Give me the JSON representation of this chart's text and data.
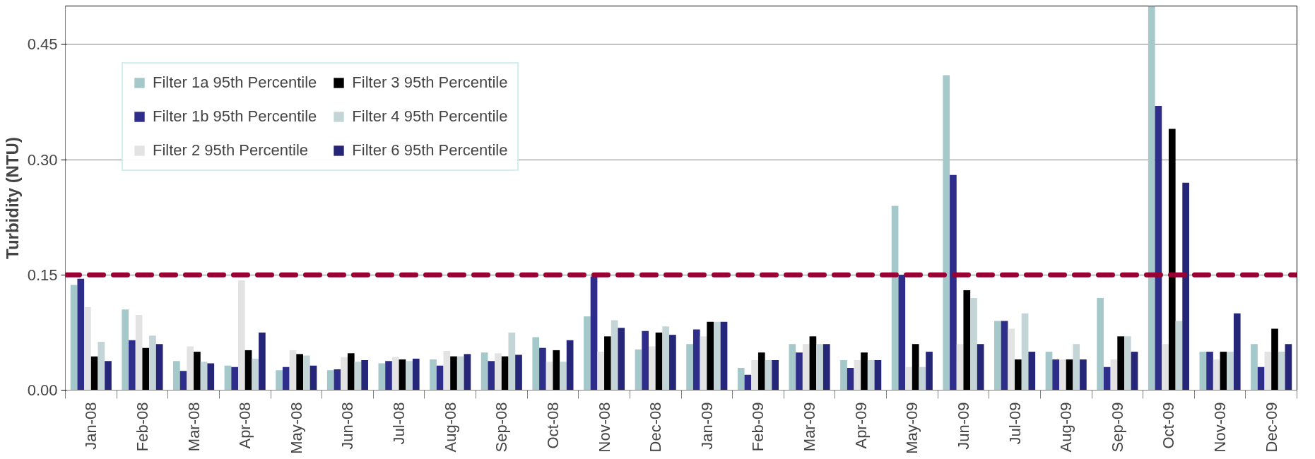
{
  "chart_data": {
    "type": "bar",
    "ylabel": "Turbidity (NTU)",
    "categories": [
      "Jan-08",
      "Feb-08",
      "Mar-08",
      "Apr-08",
      "May-08",
      "Jun-08",
      "Jul-08",
      "Aug-08",
      "Sep-08",
      "Oct-08",
      "Nov-08",
      "Dec-08",
      "Jan-09",
      "Feb-09",
      "Mar-09",
      "Apr-09",
      "May-09",
      "Jun-09",
      "Jul-09",
      "Aug-09",
      "Sep-09",
      "Oct-09",
      "Nov-09",
      "Dec-09"
    ],
    "series": [
      {
        "name": "Filter 1a 95th Percentile",
        "color": "#a5c8ca",
        "values": [
          0.137,
          0.105,
          0.038,
          0.032,
          0.026,
          0.026,
          0.035,
          0.04,
          0.049,
          0.069,
          0.096,
          0.053,
          0.06,
          0.029,
          0.06,
          0.039,
          0.24,
          0.41,
          0.09,
          0.05,
          0.12,
          0.5,
          0.05,
          0.06
        ]
      },
      {
        "name": "Filter 1b 95th Percentile",
        "color": "#2e2e8a",
        "values": [
          0.145,
          0.065,
          0.025,
          0.03,
          0.03,
          0.027,
          0.038,
          0.032,
          0.038,
          0.055,
          0.148,
          0.077,
          0.079,
          0.02,
          0.049,
          0.029,
          0.15,
          0.28,
          0.09,
          0.04,
          0.03,
          0.37,
          0.05,
          0.03
        ]
      },
      {
        "name": "Filter 2 95th Percentile",
        "color": "#e3e3e3",
        "values": [
          0.108,
          0.098,
          0.057,
          0.143,
          0.052,
          0.043,
          0.043,
          0.051,
          0.048,
          0.037,
          0.05,
          0.057,
          0.07,
          0.039,
          0.06,
          0.039,
          0.03,
          0.06,
          0.08,
          0.04,
          0.04,
          0.06,
          0.04,
          0.05
        ]
      },
      {
        "name": "Filter 3 95th Percentile",
        "color": "#000000",
        "values": [
          0.044,
          0.055,
          0.05,
          0.052,
          0.047,
          0.048,
          0.04,
          0.044,
          0.044,
          0.052,
          0.07,
          0.075,
          0.089,
          0.049,
          0.07,
          0.049,
          0.06,
          0.13,
          0.04,
          0.04,
          0.07,
          0.34,
          0.05,
          0.08
        ]
      },
      {
        "name": "Filter 4 95th Percentile",
        "color": "#c3d5d7",
        "values": [
          0.063,
          0.071,
          0.037,
          0.041,
          0.045,
          0.037,
          0.038,
          0.044,
          0.075,
          0.037,
          0.091,
          0.083,
          0.089,
          0.039,
          0.06,
          0.039,
          0.03,
          0.12,
          0.1,
          0.06,
          0.07,
          0.09,
          0.05,
          0.05
        ]
      },
      {
        "name": "Filter 6 95th Percentile",
        "color": "#262678",
        "values": [
          0.038,
          0.06,
          0.035,
          0.075,
          0.032,
          0.039,
          0.041,
          0.047,
          0.046,
          0.065,
          0.081,
          0.072,
          0.089,
          0.039,
          0.06,
          0.039,
          0.05,
          0.06,
          0.05,
          0.04,
          0.05,
          0.27,
          0.1,
          0.06
        ]
      }
    ],
    "ylim": [
      0,
      0.5
    ],
    "yticks": [
      {
        "value": 0,
        "label": "0.00"
      },
      {
        "value": 0.15,
        "label": "0.15"
      },
      {
        "value": 0.3,
        "label": "0.30"
      },
      {
        "value": 0.45,
        "label": "0.45"
      }
    ],
    "grid": "y",
    "legend": "top left",
    "ref_lines": [
      {
        "axis": "y",
        "value": 0.15,
        "color": "#990033",
        "line_style": "dashed"
      }
    ]
  }
}
